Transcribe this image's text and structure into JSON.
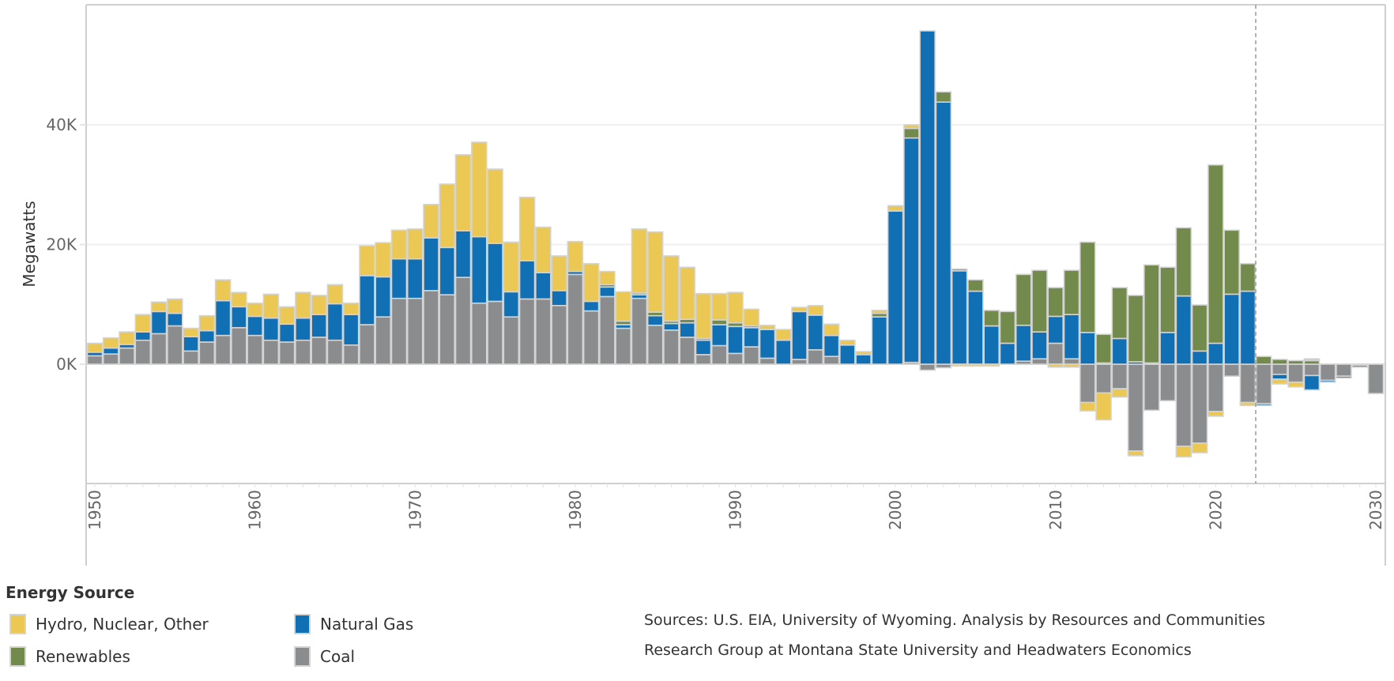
{
  "chart_data": {
    "type": "bar",
    "stacked": true,
    "ylabel": "Megawatts",
    "xlabel": "",
    "ylim": [
      -20000,
      60000
    ],
    "y_ticks": [
      0,
      20000,
      40000
    ],
    "y_tick_labels": [
      "0K",
      "20K",
      "40K"
    ],
    "x_ticks": [
      1950,
      1960,
      1970,
      1980,
      1990,
      2000,
      2010,
      2020,
      2030
    ],
    "x_tick_labels": [
      "1950",
      "1960",
      "1970",
      "1980",
      "1990",
      "2000",
      "2010",
      "2020",
      "2030"
    ],
    "grid": true,
    "reference_line_after_year": 2022,
    "x_start": 1950,
    "x_end": 2030,
    "units": "thousand MW",
    "series": [
      {
        "name": "Coal",
        "color": "#8b8c8e",
        "values": [
          1.4,
          1.7,
          2.7,
          4.0,
          5.1,
          6.4,
          2.2,
          3.7,
          4.8,
          6.1,
          4.8,
          4.0,
          3.7,
          4.0,
          4.5,
          4.0,
          3.2,
          6.6,
          7.9,
          11.0,
          11.0,
          12.3,
          11.6,
          14.5,
          10.2,
          10.5,
          7.9,
          10.9,
          10.9,
          9.8,
          15.0,
          8.9,
          11.3,
          6.0,
          11.0,
          6.5,
          5.7,
          4.5,
          1.6,
          3.1,
          1.8,
          2.9,
          1.0,
          0,
          0.8,
          2.4,
          1.3,
          0,
          0,
          0,
          0,
          0.3,
          -1.0,
          -0.6,
          0,
          0,
          0,
          0,
          0.5,
          0.9,
          3.5,
          0.9,
          -6.4,
          -4.8,
          -4.1,
          -14.5,
          -7.7,
          -6.1,
          -13.7,
          -13.2,
          -7.9,
          -2.0,
          -6.4,
          -6.6,
          -1.7,
          -3.0,
          -1.9,
          -2.7,
          -2.0,
          -0.2,
          -4.9
        ]
      },
      {
        "name": "Natural Gas",
        "color": "#1170b4",
        "values": [
          0.6,
          1.0,
          0.6,
          1.4,
          3.7,
          2.1,
          2.4,
          1.9,
          5.8,
          3.5,
          3.2,
          3.7,
          3.0,
          3.7,
          3.8,
          6.1,
          5.1,
          8.2,
          6.7,
          6.6,
          6.6,
          8.8,
          7.9,
          7.8,
          11.1,
          9.7,
          4.2,
          6.4,
          4.4,
          2.5,
          0.5,
          1.6,
          1.6,
          0.6,
          0.6,
          1.6,
          1.1,
          2.4,
          2.4,
          3.5,
          4.5,
          3.2,
          4.8,
          4.0,
          8.0,
          5.8,
          3.5,
          3.2,
          1.6,
          7.9,
          25.6,
          37.5,
          55.7,
          43.8,
          15.6,
          12.2,
          6.4,
          3.5,
          6.0,
          4.5,
          4.5,
          7.4,
          5.3,
          0.2,
          4.3,
          0.4,
          0.2,
          5.3,
          11.4,
          2.2,
          3.5,
          11.7,
          12.2,
          -0.3,
          -0.8,
          0,
          -2.4,
          -0.3,
          -0.3,
          -0.3,
          0
        ]
      },
      {
        "name": "Renewables",
        "color": "#728a4b",
        "values": [
          0,
          0,
          0,
          0,
          0,
          0,
          0,
          0,
          0,
          0,
          0,
          0,
          0,
          0,
          0,
          0,
          0,
          0,
          0,
          0,
          0,
          0,
          0,
          0,
          0,
          0,
          0,
          0,
          0,
          0,
          0,
          0,
          0.4,
          0.6,
          0.3,
          0.6,
          0.4,
          0.6,
          0.3,
          0.8,
          0.6,
          0.3,
          0,
          0,
          0,
          0,
          0,
          0,
          0,
          0.6,
          0,
          1.6,
          0,
          1.7,
          0.3,
          1.9,
          2.6,
          5.3,
          8.5,
          10.3,
          4.8,
          7.4,
          15.1,
          4.8,
          8.5,
          11.1,
          16.4,
          10.9,
          11.4,
          7.7,
          29.8,
          10.7,
          4.6,
          1.3,
          0.8,
          0.6,
          0.6,
          0,
          0,
          0,
          0
        ]
      },
      {
        "name": "Hydro, Nuclear, Other",
        "color": "#ebc853",
        "values": [
          1.5,
          1.7,
          2.1,
          2.9,
          1.6,
          2.4,
          1.4,
          2.5,
          3.5,
          2.4,
          2.2,
          4.0,
          2.9,
          4.3,
          3.2,
          3.2,
          1.9,
          5.0,
          5.7,
          4.8,
          5.0,
          5.6,
          10.6,
          12.7,
          15.8,
          12.4,
          8.3,
          10.6,
          7.6,
          5.8,
          5.0,
          6.3,
          2.2,
          4.9,
          10.7,
          13.4,
          10.9,
          8.7,
          7.5,
          4.4,
          5.1,
          2.8,
          0.7,
          1.8,
          0.7,
          1.6,
          1.9,
          0.8,
          0.5,
          0.5,
          0.9,
          0.6,
          0,
          0,
          -0.3,
          -0.3,
          -0.3,
          0,
          0,
          0,
          -0.5,
          -0.5,
          -1.4,
          -4.5,
          -1.4,
          -0.8,
          0,
          0,
          -1.8,
          -1.6,
          -0.8,
          0,
          -0.5,
          0,
          -0.8,
          -0.8,
          0.3,
          0,
          0,
          0,
          0
        ]
      }
    ]
  },
  "legend": {
    "title": "Energy Source",
    "items": [
      {
        "label": "Hydro, Nuclear, Other",
        "color": "#ebc853"
      },
      {
        "label": "Natural Gas",
        "color": "#1170b4"
      },
      {
        "label": "Renewables",
        "color": "#728a4b"
      },
      {
        "label": "Coal",
        "color": "#8b8c8e"
      }
    ]
  },
  "sources": {
    "line1": "Sources: U.S. EIA, University of Wyoming. Analysis by Resources and Communities",
    "line2": "Research Group at Montana State University and Headwaters Economics"
  }
}
